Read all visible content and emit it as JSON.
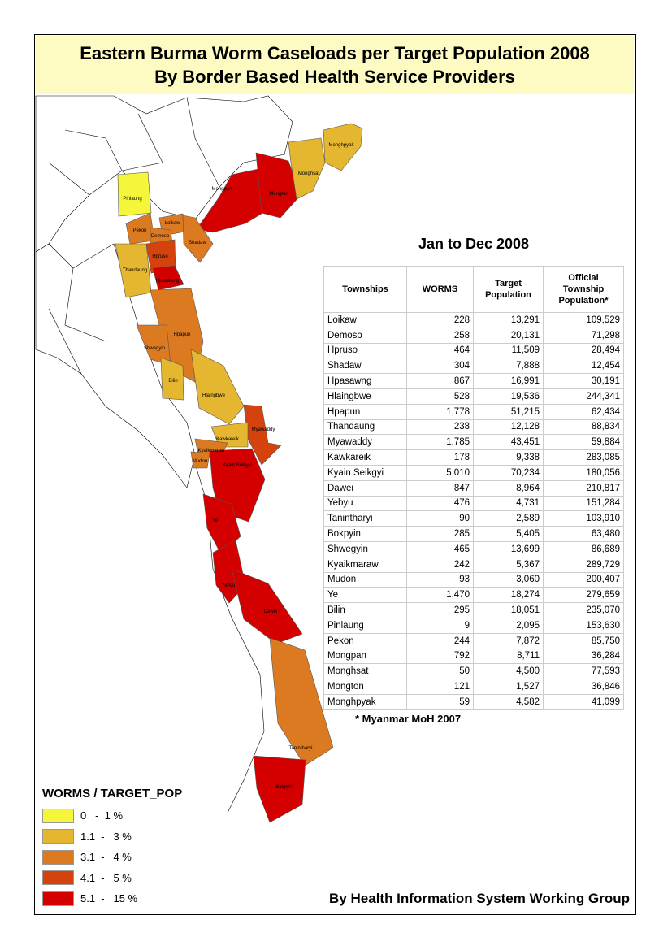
{
  "title": {
    "line1": "Eastern Burma Worm Caseloads per Target Population 2008",
    "line2": "By Border Based Health Service Providers"
  },
  "subtitle": "Jan to Dec 2008",
  "table": {
    "headers": [
      "Townships",
      "WORMS",
      "Target Population",
      "Official Township Population*"
    ],
    "rows": [
      [
        "Loikaw",
        "228",
        "13,291",
        "109,529"
      ],
      [
        "Demoso",
        "258",
        "20,131",
        "71,298"
      ],
      [
        "Hpruso",
        "464",
        "11,509",
        "28,494"
      ],
      [
        "Shadaw",
        "304",
        "7,888",
        "12,454"
      ],
      [
        "Hpasawng",
        "867",
        "16,991",
        "30,191"
      ],
      [
        "Hlaingbwe",
        "528",
        "19,536",
        "244,341"
      ],
      [
        "Hpapun",
        "1,778",
        "51,215",
        "62,434"
      ],
      [
        "Thandaung",
        "238",
        "12,128",
        "88,834"
      ],
      [
        "Myawaddy",
        "1,785",
        "43,451",
        "59,884"
      ],
      [
        "Kawkareik",
        "178",
        "9,338",
        "283,085"
      ],
      [
        "Kyain Seikgyi",
        "5,010",
        "70,234",
        "180,056"
      ],
      [
        "Dawei",
        "847",
        "8,964",
        "210,817"
      ],
      [
        "Yebyu",
        "476",
        "4,731",
        "151,284"
      ],
      [
        "Tanintharyi",
        "90",
        "2,589",
        "103,910"
      ],
      [
        "Bokpyin",
        "285",
        "5,405",
        "63,480"
      ],
      [
        "Shwegyin",
        "465",
        "13,699",
        "86,689"
      ],
      [
        "Kyaikmaraw",
        "242",
        "5,367",
        "289,729"
      ],
      [
        "Mudon",
        "93",
        "3,060",
        "200,407"
      ],
      [
        "Ye",
        "1,470",
        "18,274",
        "279,659"
      ],
      [
        "Bilin",
        "295",
        "18,051",
        "235,070"
      ],
      [
        "Pinlaung",
        "9",
        "2,095",
        "153,630"
      ],
      [
        "Pekon",
        "244",
        "7,872",
        "85,750"
      ],
      [
        "Mongpan",
        "792",
        "8,711",
        "36,284"
      ],
      [
        "Monghsat",
        "50",
        "4,500",
        "77,593"
      ],
      [
        "Mongton",
        "121",
        "1,527",
        "36,846"
      ],
      [
        "Monghpyak",
        "59",
        "4,582",
        "41,099"
      ]
    ]
  },
  "footnote": "* Myanmar MoH 2007",
  "legend": {
    "title": "WORMS / TARGET_POP",
    "classes": [
      {
        "label": "0   -  1 %",
        "color": "#f5f53a"
      },
      {
        "label": "1.1  -   3 %",
        "color": "#e5b630"
      },
      {
        "label": "3.1  -   4 %",
        "color": "#dc7a22"
      },
      {
        "label": "4.1  -   5 %",
        "color": "#d4420e"
      },
      {
        "label": "5.1  -   15 %",
        "color": "#d40000"
      }
    ]
  },
  "map_labels": {
    "pinlaung": "Pinlaung",
    "mongpan": "Mongpan",
    "mongton": "Mongton",
    "monghsat": "Monghsat",
    "monghpyak": "Monghpyak",
    "loikaw": "Loikaw",
    "pekon": "Pekon",
    "demoso": "Demoso",
    "shadaw": "Shadaw",
    "hpruso": "Hpruso",
    "thandaung": "Thandaung",
    "hpasawng": "Hpasawng",
    "hpapun": "Hpapun",
    "shwegyin": "Shwegyin",
    "bilin": "Bilin",
    "hlaingbwe": "Hlaingbwe",
    "myawaddy": "Myawaddy",
    "kawkareik": "Kawkareik",
    "kyaikmaraw": "Kyaikmaraw",
    "mudon": "Mudon",
    "kyainseikgyi": "Kyain Seikgyi",
    "ye": "Ye",
    "yebyu": "Yebyu",
    "dawei": "Dawei",
    "tanintharyi": "Tanintharyi",
    "bokpyin": "Bokpyin"
  },
  "credit": "By Health Information System Working Group"
}
